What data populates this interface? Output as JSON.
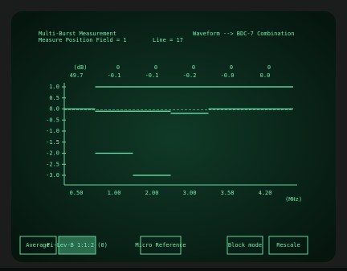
{
  "header": {
    "title": "Multi-Burst Measurement",
    "subtitle": "Measure Position Field = 1",
    "line_label": "Line = 17",
    "mode": "Waveform --> BDC-7 Combination"
  },
  "readings": {
    "header_row": [
      "(dB)",
      "0",
      "0",
      "0",
      "0",
      "0"
    ],
    "values": [
      "49.7",
      "-0.1",
      "-0.1",
      "-0.2",
      "-0.0",
      "0.0"
    ]
  },
  "chart_data": {
    "type": "step",
    "categories": [
      "0.50",
      "1.00",
      "2.00",
      "3.00",
      "3.58",
      "4.20"
    ],
    "x_unit": "(MHz)",
    "series": [
      {
        "color": "#6cf0b0",
        "values": [
          0.0,
          -0.1,
          -0.1,
          -0.2,
          0.0,
          0.0
        ]
      },
      {
        "color": "#6cf0b0",
        "values": [
          null,
          -2.0,
          -3.0,
          null,
          null,
          null
        ]
      },
      {
        "color": "#6cf0b0",
        "values": [
          null,
          1.0,
          1.0,
          1.0,
          1.0,
          1.0
        ]
      }
    ],
    "ylim": [
      -3.0,
      1.0
    ],
    "yticks": [
      {
        "value": 1,
        "label": "1.0"
      },
      0.5,
      {
        "value": 0,
        "label": "0.0"
      },
      -0.5,
      {
        "value": -1,
        "label": "-1.0"
      },
      -1.5,
      {
        "value": -2,
        "label": "-2.0"
      },
      -2.5,
      {
        "value": -3,
        "label": "-3.0"
      }
    ],
    "grid": false
  },
  "softkeys": [
    "Average",
    "Fi-Lev-B 1:1:2 (0)",
    "Micro Reference",
    "Block mode",
    "Rescale"
  ]
}
